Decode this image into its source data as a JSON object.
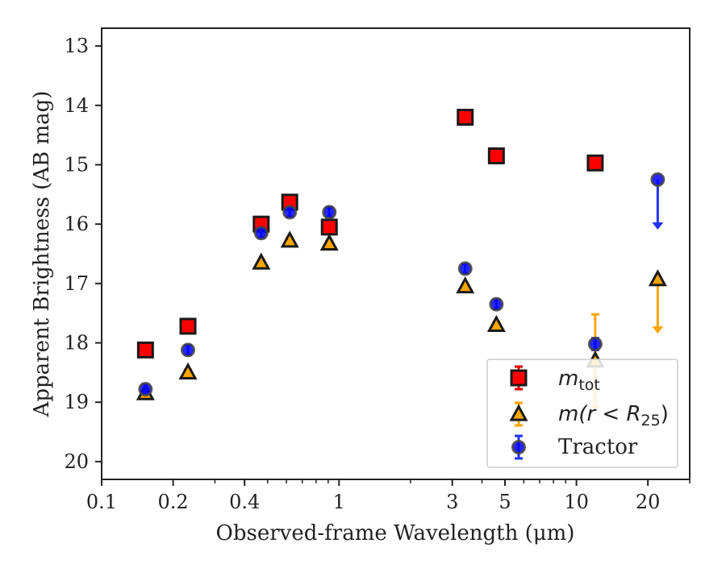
{
  "chart_data": {
    "type": "scatter",
    "xlabel": "Observed-frame Wavelength (μm)",
    "ylabel": "Apparent Brightness (AB mag)",
    "xscale": "log",
    "xlim": [
      0.1,
      30
    ],
    "ylim": [
      20.3,
      12.7
    ],
    "y_inverted": true,
    "x_ticks": [
      {
        "value": 0.1,
        "label": "0.1"
      },
      {
        "value": 0.2,
        "label": "0.2"
      },
      {
        "value": 0.4,
        "label": "0.4"
      },
      {
        "value": 1,
        "label": "1"
      },
      {
        "value": 3,
        "label": "3"
      },
      {
        "value": 5,
        "label": "5"
      },
      {
        "value": 10,
        "label": "10"
      },
      {
        "value": 20,
        "label": "20"
      }
    ],
    "y_ticks": [
      {
        "value": 13,
        "label": "13"
      },
      {
        "value": 14,
        "label": "14"
      },
      {
        "value": 15,
        "label": "15"
      },
      {
        "value": 16,
        "label": "16"
      },
      {
        "value": 17,
        "label": "17"
      },
      {
        "value": 18,
        "label": "18"
      },
      {
        "value": 19,
        "label": "19"
      },
      {
        "value": 20,
        "label": "20"
      }
    ],
    "grid": false,
    "legend_position": "lower-right",
    "series": [
      {
        "name": "m_tot",
        "legend_main": "m",
        "legend_sub": "tot",
        "marker": "square",
        "color": "#ff0000",
        "edge": "#1a1a1a",
        "points": [
          {
            "x": 0.153,
            "y": 18.12,
            "err": 0.05
          },
          {
            "x": 0.231,
            "y": 17.72,
            "err": 0.05
          },
          {
            "x": 0.47,
            "y": 16.0,
            "err": 0.05
          },
          {
            "x": 0.62,
            "y": 15.63,
            "err": 0.05
          },
          {
            "x": 0.91,
            "y": 16.05,
            "err": 0.05
          },
          {
            "x": 3.4,
            "y": 14.2,
            "err": 0.03
          },
          {
            "x": 4.6,
            "y": 14.85,
            "err": 0.03
          },
          {
            "x": 12.0,
            "y": 14.97,
            "err": 0.03
          }
        ]
      },
      {
        "name": "m(r < R25)",
        "legend_text": "m(r < R",
        "legend_sub": "25",
        "legend_close": ")",
        "marker": "triangle",
        "color": "#ffa500",
        "edge": "#1a1a1a",
        "points": [
          {
            "x": 0.153,
            "y": 18.85,
            "err": 0.05
          },
          {
            "x": 0.231,
            "y": 18.5,
            "err": 0.05
          },
          {
            "x": 0.47,
            "y": 16.65,
            "err": 0.05
          },
          {
            "x": 0.62,
            "y": 16.28,
            "err": 0.05
          },
          {
            "x": 0.91,
            "y": 16.33,
            "err": 0.05
          },
          {
            "x": 3.4,
            "y": 17.05,
            "err": 0.03
          },
          {
            "x": 4.6,
            "y": 17.7,
            "err": 0.05
          },
          {
            "x": 12.0,
            "y": 18.3,
            "err": 0.78
          },
          {
            "x": 22.0,
            "y": 16.93,
            "upper_limit_to": 17.83
          }
        ]
      },
      {
        "name": "Tractor",
        "marker": "circle",
        "color": "#0000ff",
        "edge": "#444444",
        "points": [
          {
            "x": 0.153,
            "y": 18.78,
            "err": 0.08
          },
          {
            "x": 0.231,
            "y": 18.12,
            "err": 0.08
          },
          {
            "x": 0.47,
            "y": 16.15,
            "err": 0.08
          },
          {
            "x": 0.62,
            "y": 15.8,
            "err": 0.08
          },
          {
            "x": 0.91,
            "y": 15.8,
            "err": 0.08
          },
          {
            "x": 3.4,
            "y": 16.75,
            "err": 0.08
          },
          {
            "x": 4.6,
            "y": 17.35,
            "err": 0.08
          },
          {
            "x": 12.0,
            "y": 18.02,
            "err": 0.1
          },
          {
            "x": 22.0,
            "y": 15.25,
            "upper_limit_to": 16.08
          }
        ]
      }
    ]
  }
}
